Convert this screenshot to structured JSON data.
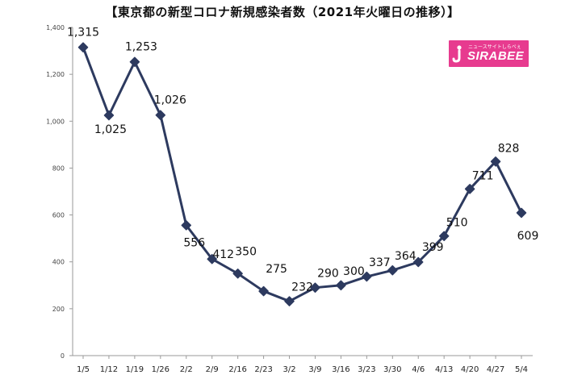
{
  "chart_data": {
    "type": "line",
    "title": "【東京都の新型コロナ新規感染者数（2021年火曜日の推移）】",
    "categories": [
      "1/5",
      "1/12",
      "1/19",
      "1/26",
      "2/2",
      "2/9",
      "2/16",
      "2/23",
      "3/2",
      "3/9",
      "3/16",
      "3/23",
      "3/30",
      "4/6",
      "4/13",
      "4/20",
      "4/27",
      "5/4"
    ],
    "values": [
      1315,
      1025,
      1253,
      1026,
      556,
      412,
      350,
      275,
      232,
      290,
      300,
      337,
      364,
      399,
      510,
      711,
      828,
      609
    ],
    "data_labels": [
      "1,315",
      "1,025",
      "1,253",
      "1,026",
      "556",
      "412",
      "350",
      "275",
      "232",
      "290",
      "300",
      "337",
      "364",
      "399",
      "510",
      "711",
      "828",
      "609"
    ],
    "y_ticks": [
      "0",
      "200",
      "400",
      "600",
      "800",
      "1,000",
      "1,200",
      "1,400"
    ],
    "ylim": [
      0,
      1400
    ],
    "xlabel": "",
    "ylabel": "",
    "grid": false,
    "line_color": "#2d3a5f"
  },
  "logo": {
    "wordmark": "SIRABEE",
    "tagline": "ニュースサイトしらべぇ",
    "background_color": "#e73b8f"
  }
}
